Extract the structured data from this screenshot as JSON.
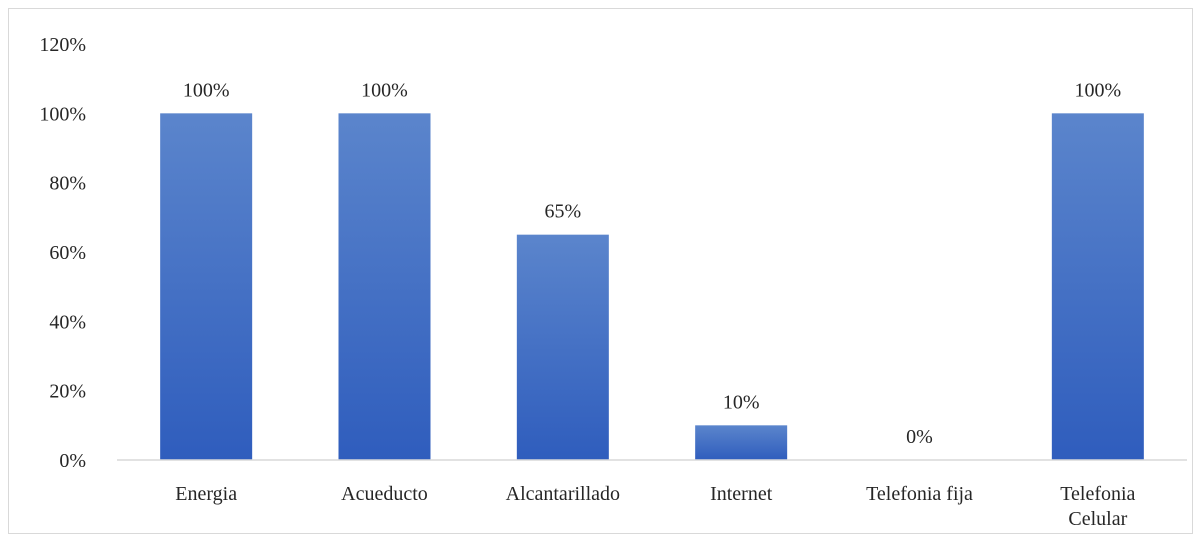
{
  "chart_data": {
    "type": "bar",
    "categories": [
      "Energia",
      "Acueducto",
      "Alcantarillado",
      "Internet",
      "Telefonia fija",
      "Telefonia Celular"
    ],
    "category_lines": [
      [
        "Energia"
      ],
      [
        "Acueducto"
      ],
      [
        "Alcantarillado"
      ],
      [
        "Internet"
      ],
      [
        "Telefonia fija"
      ],
      [
        "Telefonia",
        "Celular"
      ]
    ],
    "values": [
      100,
      100,
      65,
      10,
      0,
      100
    ],
    "data_labels": [
      "100%",
      "100%",
      "65%",
      "10%",
      "0%",
      "100%"
    ],
    "yticks": [
      0,
      20,
      40,
      60,
      80,
      100,
      120
    ],
    "ytick_labels": [
      "0%",
      "20%",
      "40%",
      "60%",
      "80%",
      "100%",
      "120%"
    ],
    "ylim": [
      0,
      120
    ],
    "title": "",
    "xlabel": "",
    "ylabel": "",
    "grid": false,
    "legend": "none",
    "bar_color_top": "#5b85cc",
    "bar_color_bottom": "#2f5dbd"
  }
}
